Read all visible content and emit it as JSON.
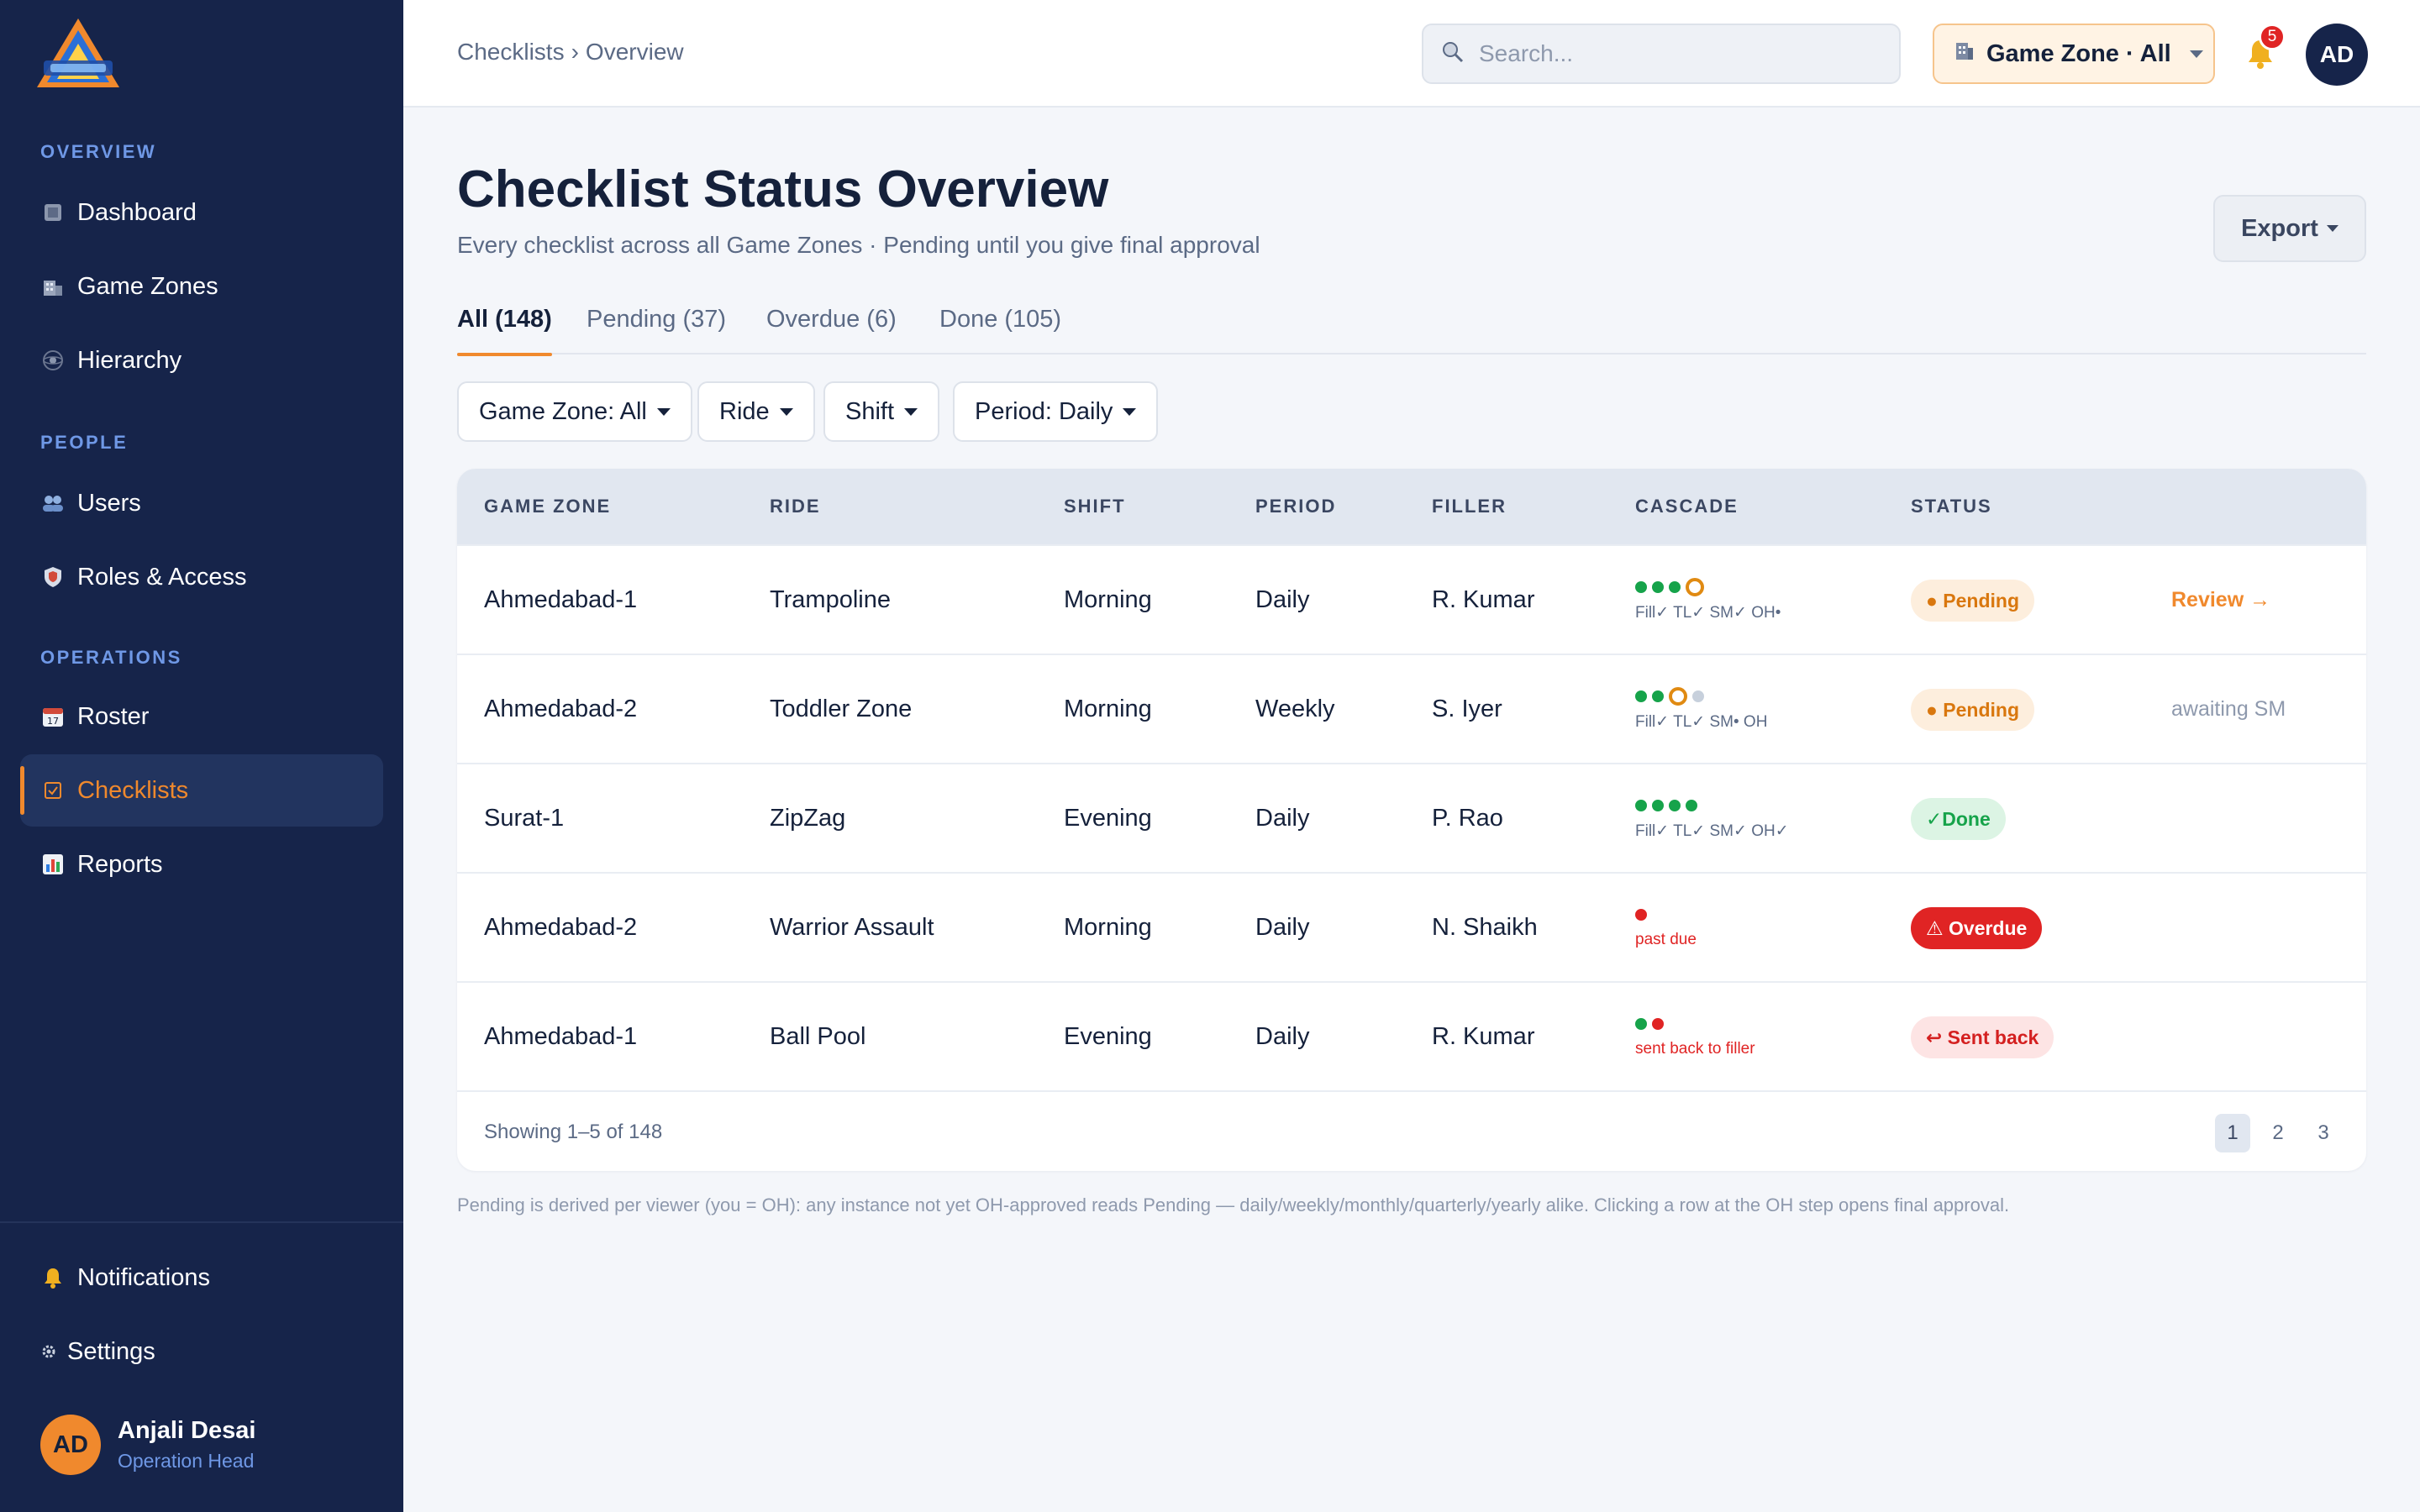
{
  "brand": {
    "logo_icon": "triangle-mountain-logo"
  },
  "sidebar": {
    "sections": [
      {
        "title": "OVERVIEW",
        "items": [
          {
            "label": "Dashboard",
            "icon": "grid-icon"
          },
          {
            "label": "Game Zones",
            "icon": "building-icon"
          },
          {
            "label": "Hierarchy",
            "icon": "network-icon"
          }
        ]
      },
      {
        "title": "PEOPLE",
        "items": [
          {
            "label": "Users",
            "icon": "users-icon"
          },
          {
            "label": "Roles & Access",
            "icon": "shield-icon"
          }
        ]
      },
      {
        "title": "OPERATIONS",
        "items": [
          {
            "label": "Roster",
            "icon": "calendar-icon"
          },
          {
            "label": "Checklists",
            "icon": "checkbox-icon",
            "active": true
          },
          {
            "label": "Reports",
            "icon": "bar-chart-icon"
          }
        ]
      }
    ],
    "bottom_items": [
      {
        "label": "Notifications",
        "icon": "bell-icon"
      },
      {
        "label": "Settings",
        "icon": "gear-icon"
      }
    ],
    "user": {
      "initials": "AD",
      "name": "Anjali Desai",
      "role": "Operation Head"
    }
  },
  "header": {
    "breadcrumb": [
      "Checklists",
      "›",
      "Overview"
    ],
    "search_placeholder": "Search...",
    "zone_selector": "Game Zone · All",
    "notification_count": "5",
    "avatar_initials": "AD"
  },
  "page": {
    "title": "Checklist Status Overview",
    "subtitle": "Every checklist across all Game Zones · Pending until you give final approval",
    "export_label": "Export"
  },
  "tabs": [
    {
      "label": "All (148)",
      "active": true
    },
    {
      "label": "Pending (37)"
    },
    {
      "label": "Overdue (6)"
    },
    {
      "label": "Done (105)"
    }
  ],
  "filters": [
    "Game Zone: All",
    "Ride",
    "Shift",
    "Period: Daily"
  ],
  "table": {
    "columns": [
      "GAME ZONE",
      "RIDE",
      "SHIFT",
      "PERIOD",
      "FILLER",
      "CASCADE",
      "STATUS"
    ],
    "rows": [
      {
        "zone": "Ahmedabad-1",
        "ride": "Trampoline",
        "shift": "Morning",
        "period": "Daily",
        "filler": "R. Kumar",
        "cascade_dots": [
          "green",
          "green",
          "green",
          "ring"
        ],
        "cascade_label": "Fill✓ TL✓ SM✓ OH•",
        "cascade_alert": false,
        "status": "● Pending",
        "status_type": "pending",
        "action": "Review →",
        "action_type": "link"
      },
      {
        "zone": "Ahmedabad-2",
        "ride": "Toddler Zone",
        "shift": "Morning",
        "period": "Weekly",
        "filler": "S. Iyer",
        "cascade_dots": [
          "green",
          "green",
          "ring",
          "grey"
        ],
        "cascade_label": "Fill✓ TL✓ SM• OH",
        "cascade_alert": false,
        "status": "● Pending",
        "status_type": "pending",
        "action": "awaiting SM",
        "action_type": "muted"
      },
      {
        "zone": "Surat-1",
        "ride": "ZipZag",
        "shift": "Evening",
        "period": "Daily",
        "filler": "P. Rao",
        "cascade_dots": [
          "green",
          "green",
          "green",
          "green"
        ],
        "cascade_label": "Fill✓ TL✓ SM✓ OH✓",
        "cascade_alert": false,
        "status": "✓Done",
        "status_type": "done",
        "action": "",
        "action_type": "none"
      },
      {
        "zone": "Ahmedabad-2",
        "ride": "Warrior Assault",
        "shift": "Morning",
        "period": "Daily",
        "filler": "N. Shaikh",
        "cascade_dots": [
          "red"
        ],
        "cascade_label": "past due",
        "cascade_alert": true,
        "status": "⚠ Overdue",
        "status_type": "overdue",
        "action": "",
        "action_type": "none"
      },
      {
        "zone": "Ahmedabad-1",
        "ride": "Ball Pool",
        "shift": "Evening",
        "period": "Daily",
        "filler": "R. Kumar",
        "cascade_dots": [
          "green",
          "red"
        ],
        "cascade_label": "sent back to filler",
        "cascade_alert": true,
        "status": "↩ Sent back",
        "status_type": "sent",
        "action": "",
        "action_type": "none"
      }
    ],
    "footer": {
      "showing": "Showing 1–5 of 148",
      "pages": [
        "1",
        "2",
        "3"
      ],
      "current_page": "1"
    }
  },
  "footnote": "Pending is derived per viewer (you = OH): any instance not yet OH-approved reads Pending — daily/weekly/monthly/quarterly/yearly alike. Clicking a row at the OH step opens final approval.",
  "colors": {
    "sidebar_bg": "#16244a",
    "accent": "#f0892d",
    "success": "#16a34a",
    "danger": "#e02424"
  }
}
